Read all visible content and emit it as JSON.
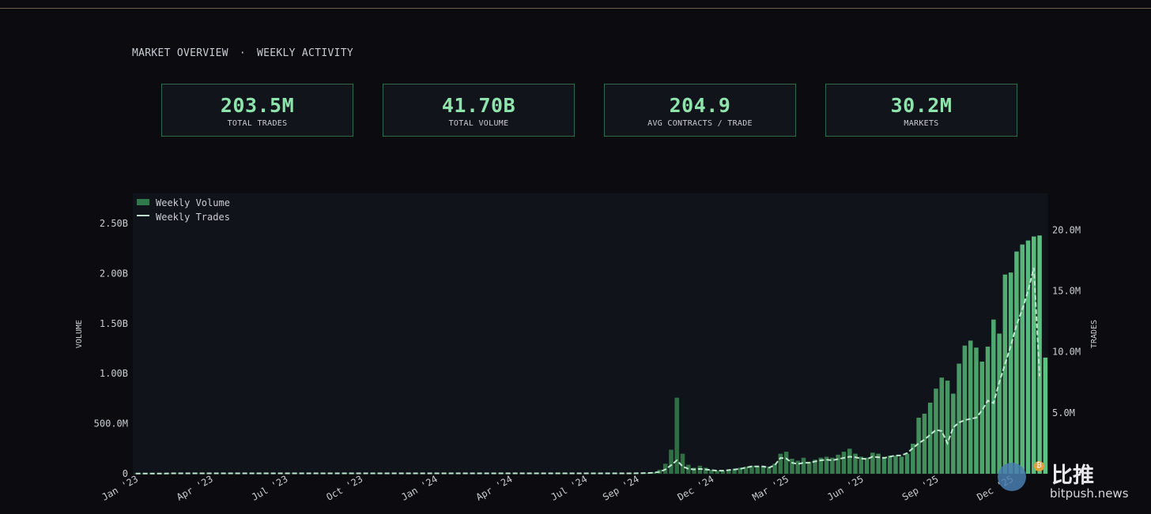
{
  "header": {
    "left": "MARKET OVERVIEW",
    "separator": "·",
    "right": "WEEKLY ACTIVITY"
  },
  "stats": [
    {
      "value": "203.5M",
      "label": "TOTAL TRADES"
    },
    {
      "value": "41.70B",
      "label": "TOTAL VOLUME"
    },
    {
      "value": "204.9",
      "label": "AVG CONTRACTS / TRADE"
    },
    {
      "value": "30.2M",
      "label": "MARKETS"
    }
  ],
  "colors": {
    "background": "#0b0b10",
    "plot_background": "#11131a",
    "bar_dark": "#2e6a41",
    "bar_light": "#5fc283",
    "line": "#bfe9cf",
    "stat_value": "#8fe3ad",
    "stat_border": "#2f6b46"
  },
  "watermark": {
    "cn": "比推",
    "en": "bitpush.news"
  },
  "chart_data": {
    "type": "bar",
    "legend_position": "top-left",
    "grid": false,
    "x_tick_labels": [
      "Jan '23",
      "Apr '23",
      "Jul '23",
      "Oct '23",
      "Jan '24",
      "Apr '24",
      "Jul '24",
      "Sep '24",
      "Dec '24",
      "Mar '25",
      "Jun '25",
      "Sep '25",
      "Dec '25"
    ],
    "x_tick_weeks": [
      0,
      13,
      26,
      39,
      52,
      65,
      78,
      87,
      100,
      113,
      126,
      139,
      152
    ],
    "y_left": {
      "label": "VOLUME",
      "ticks": [
        0,
        500000000,
        1000000000,
        1500000000,
        2000000000,
        2500000000
      ],
      "tick_labels": [
        "0",
        "500.0M",
        "1.00B",
        "1.50B",
        "2.00B",
        "2.50B"
      ],
      "range": [
        0,
        2800000000
      ]
    },
    "y_right": {
      "label": "TRADES",
      "ticks": [
        5000000,
        10000000,
        15000000,
        20000000
      ],
      "tick_labels": [
        "5.0M",
        "10.0M",
        "15.0M",
        "20.0M"
      ],
      "range": [
        0,
        23000000
      ]
    },
    "series": [
      {
        "name": "Weekly Volume",
        "axis": "left",
        "type": "bar",
        "values": [
          2000000,
          2000000,
          2000000,
          2000000,
          2000000,
          2000000,
          3000000,
          3000000,
          3000000,
          3000000,
          3000000,
          3000000,
          3000000,
          3000000,
          3000000,
          3000000,
          3000000,
          3000000,
          3000000,
          3000000,
          3000000,
          3000000,
          3000000,
          3000000,
          3000000,
          3000000,
          3000000,
          3000000,
          3000000,
          3000000,
          3000000,
          3000000,
          3000000,
          3000000,
          3000000,
          3000000,
          3000000,
          3000000,
          3000000,
          3000000,
          3000000,
          3000000,
          3000000,
          3000000,
          3000000,
          3000000,
          3000000,
          3000000,
          3000000,
          3000000,
          3000000,
          3000000,
          3000000,
          3000000,
          3000000,
          3000000,
          3000000,
          3000000,
          3000000,
          3000000,
          3000000,
          3000000,
          3000000,
          3000000,
          3000000,
          3000000,
          3000000,
          3000000,
          3000000,
          3000000,
          3000000,
          3000000,
          3000000,
          3000000,
          3000000,
          3000000,
          3000000,
          3000000,
          3000000,
          3000000,
          3000000,
          3000000,
          3000000,
          3000000,
          3000000,
          3000000,
          3000000,
          4000000,
          5000000,
          8000000,
          15000000,
          40000000,
          100000000,
          240000000,
          760000000,
          200000000,
          90000000,
          60000000,
          80000000,
          60000000,
          40000000,
          30000000,
          30000000,
          40000000,
          50000000,
          60000000,
          70000000,
          80000000,
          70000000,
          70000000,
          70000000,
          100000000,
          200000000,
          220000000,
          150000000,
          130000000,
          160000000,
          120000000,
          140000000,
          160000000,
          170000000,
          160000000,
          190000000,
          220000000,
          250000000,
          200000000,
          170000000,
          160000000,
          210000000,
          200000000,
          160000000,
          180000000,
          180000000,
          170000000,
          200000000,
          300000000,
          560000000,
          600000000,
          710000000,
          850000000,
          960000000,
          930000000,
          800000000,
          1100000000,
          1280000000,
          1330000000,
          1260000000,
          1120000000,
          1270000000,
          1540000000,
          1400000000,
          1990000000,
          2010000000,
          2220000000,
          2290000000,
          2330000000,
          2370000000,
          2380000000,
          1160000000
        ],
        "color": "#5fc283"
      },
      {
        "name": "Weekly Trades",
        "axis": "right",
        "type": "line",
        "style": "dashed",
        "values": [
          20000,
          20000,
          20000,
          20000,
          20000,
          20000,
          30000,
          30000,
          30000,
          30000,
          30000,
          30000,
          30000,
          30000,
          30000,
          30000,
          30000,
          30000,
          30000,
          30000,
          30000,
          30000,
          30000,
          30000,
          30000,
          30000,
          30000,
          30000,
          30000,
          30000,
          30000,
          30000,
          30000,
          30000,
          30000,
          30000,
          30000,
          30000,
          30000,
          30000,
          30000,
          30000,
          30000,
          30000,
          30000,
          30000,
          30000,
          30000,
          30000,
          30000,
          30000,
          30000,
          30000,
          30000,
          30000,
          30000,
          30000,
          30000,
          30000,
          30000,
          30000,
          30000,
          30000,
          30000,
          30000,
          30000,
          30000,
          30000,
          30000,
          30000,
          30000,
          30000,
          30000,
          30000,
          30000,
          30000,
          30000,
          30000,
          30000,
          30000,
          30000,
          30000,
          30000,
          30000,
          30000,
          30000,
          30000,
          40000,
          50000,
          60000,
          90000,
          150000,
          350000,
          700000,
          1100000,
          600000,
          400000,
          350000,
          400000,
          350000,
          300000,
          250000,
          250000,
          300000,
          350000,
          400000,
          500000,
          600000,
          600000,
          600000,
          500000,
          700000,
          1300000,
          1250000,
          900000,
          800000,
          900000,
          900000,
          1000000,
          1100000,
          1150000,
          1100000,
          1200000,
          1300000,
          1400000,
          1350000,
          1250000,
          1200000,
          1400000,
          1350000,
          1300000,
          1400000,
          1500000,
          1500000,
          1700000,
          2100000,
          2500000,
          2800000,
          3200000,
          3600000,
          3500000,
          2500000,
          3800000,
          4200000,
          4400000,
          4500000,
          4600000,
          5200000,
          6000000,
          5800000,
          7500000,
          9000000,
          10500000,
          12200000,
          13500000,
          15000000,
          16900000,
          8000000
        ],
        "color": "#bfe9cf"
      }
    ]
  }
}
